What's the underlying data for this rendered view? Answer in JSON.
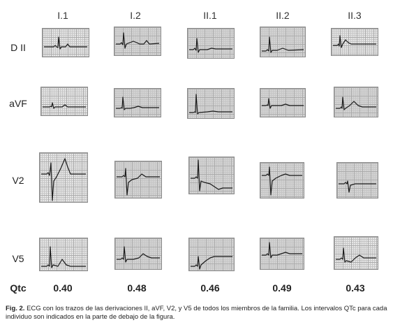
{
  "figure": {
    "columns": [
      "I.1",
      "I.2",
      "II.1",
      "II.2",
      "II.3"
    ],
    "rows": [
      "D II",
      "aVF",
      "V2",
      "V5"
    ],
    "qtc_label": "Qtc",
    "qtc_values": [
      "0.40",
      "0.48",
      "0.46",
      "0.49",
      "0.43"
    ],
    "caption_prefix": "Fig. 2.",
    "caption_text": "ECG con los trazos de las derivaciones II, aVF, V2, y V5 de todos los miembros de la familia. Los intervalos QTc para cada individuo son indicados en la parte de debajo de la figura."
  }
}
